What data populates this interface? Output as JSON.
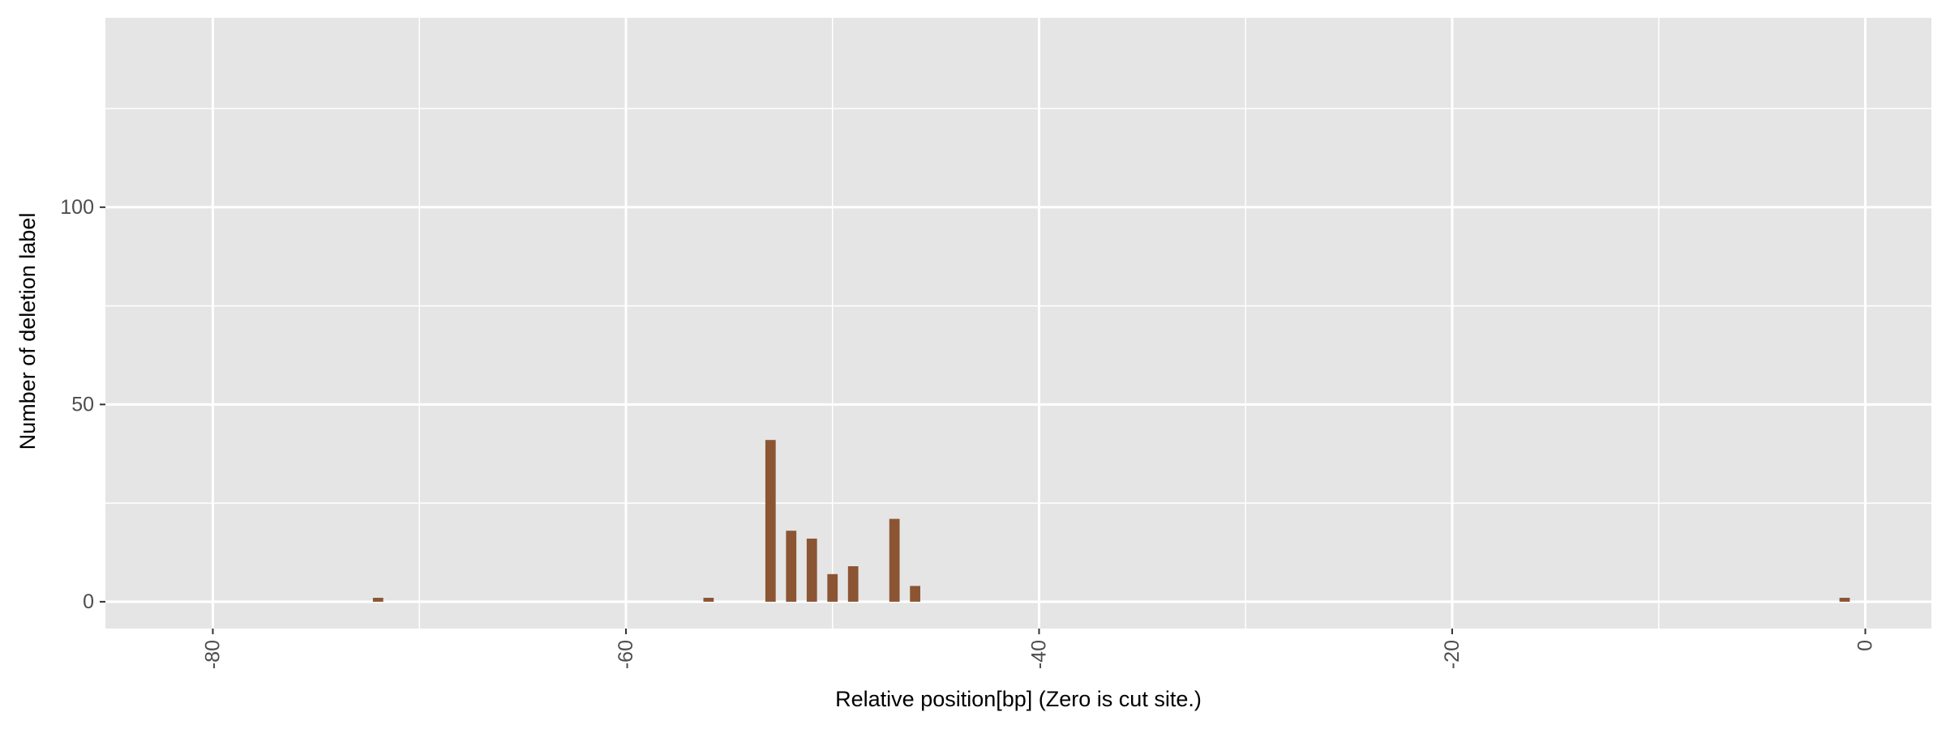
{
  "chart_data": {
    "type": "bar",
    "title": "",
    "xlabel": "Relative position[bp] (Zero is cut site.)",
    "ylabel": "Number of deletion label",
    "xlim": [
      -85.2,
      3.2
    ],
    "ylim": [
      -6.8,
      148
    ],
    "x_ticks": [
      -80,
      -60,
      -40,
      -20,
      0
    ],
    "x_tick_labels": [
      "-80",
      "-60",
      "-40",
      "-20",
      "0"
    ],
    "y_ticks": [
      0,
      50,
      100
    ],
    "y_tick_labels": [
      "0",
      "50",
      "100"
    ],
    "y_minor_ticks": [
      25,
      75,
      125
    ],
    "x_minor_ticks": [
      -70,
      -50,
      -30,
      -10
    ],
    "bar_width": 0.5,
    "x": [
      -72,
      -56,
      -53,
      -52,
      -51,
      -50,
      -49,
      -47,
      -46,
      -1
    ],
    "values": [
      1,
      1,
      41,
      18,
      16,
      7,
      9,
      21,
      4,
      1
    ],
    "grid": true,
    "legend": "none",
    "colors": {
      "bar": "#8B5533",
      "panel": "#E5E5E5",
      "grid": "#FFFFFF",
      "tick_text": "#4D4D4D",
      "title_text": "#000000"
    }
  }
}
